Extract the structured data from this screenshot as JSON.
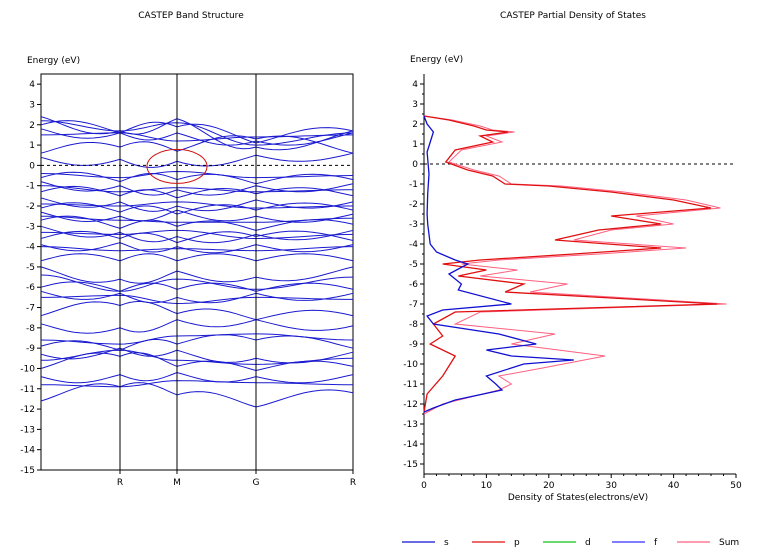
{
  "chart_data": [
    {
      "type": "line",
      "title": "CASTEP Band Structure",
      "ylabel": "Energy (eV)",
      "xlabel": "",
      "ylim": [
        -15,
        4.5
      ],
      "yticks": [
        4,
        3,
        2,
        1,
        0,
        -1,
        -2,
        -3,
        -4,
        -5,
        -6,
        -7,
        -8,
        -9,
        -10,
        -11,
        -12,
        -13,
        -14,
        -15
      ],
      "kpoint_labels": [
        "R",
        "M",
        "G",
        "R"
      ],
      "fermi_level": 0,
      "grid": false,
      "line_color": "#1a1ad0",
      "highlight_color": "#d01010",
      "bands": {
        "_note_": "approximate band energies at k-points: start, R, M, G, end(R)",
        "x": [
          "",
          "R",
          "M",
          "G",
          "R"
        ],
        "series": [
          {
            "values": [
              2.4,
              1.7,
              2.3,
              0.9,
              1.7
            ]
          },
          {
            "values": [
              2.2,
              1.7,
              2.1,
              1.0,
              1.6
            ]
          },
          {
            "values": [
              2.0,
              1.6,
              1.9,
              1.1,
              1.7
            ]
          },
          {
            "values": [
              1.8,
              1.6,
              1.6,
              1.2,
              1.6
            ]
          },
          {
            "values": [
              1.5,
              1.6,
              1.2,
              1.4,
              1.5
            ]
          },
          {
            "values": [
              0.6,
              0.9,
              0.7,
              1.3,
              0.6
            ]
          },
          {
            "values": [
              0.4,
              0.3,
              0.2,
              0.5,
              0.6
            ]
          },
          {
            "values": [
              -0.4,
              -0.6,
              -0.3,
              -0.6,
              -0.5
            ]
          },
          {
            "values": [
              -0.6,
              -0.8,
              -0.7,
              -0.9,
              -0.7
            ]
          },
          {
            "values": [
              -0.8,
              -1.0,
              -1.2,
              -1.0,
              -0.9
            ]
          },
          {
            "values": [
              -1.0,
              -1.3,
              -1.1,
              -1.3,
              -1.2
            ]
          },
          {
            "values": [
              -1.3,
              -1.5,
              -1.6,
              -1.4,
              -1.5
            ]
          },
          {
            "values": [
              -1.6,
              -1.8,
              -2.0,
              -1.7,
              -1.8
            ]
          },
          {
            "values": [
              -1.9,
              -2.0,
              -1.8,
              -2.1,
              -2.0
            ]
          },
          {
            "values": [
              -2.1,
              -2.3,
              -2.4,
              -2.2,
              -2.2
            ]
          },
          {
            "values": [
              -2.3,
              -2.5,
              -2.2,
              -2.5,
              -2.4
            ]
          },
          {
            "values": [
              -2.5,
              -2.7,
              -2.8,
              -2.8,
              -2.6
            ]
          },
          {
            "values": [
              -2.7,
              -3.1,
              -3.0,
              -3.2,
              -2.9
            ]
          },
          {
            "values": [
              -3.0,
              -3.3,
              -3.5,
              -3.4,
              -3.2
            ]
          },
          {
            "values": [
              -3.3,
              -3.4,
              -3.2,
              -3.6,
              -3.4
            ]
          },
          {
            "values": [
              -3.6,
              -3.6,
              -3.8,
              -3.5,
              -3.7
            ]
          },
          {
            "values": [
              -3.9,
              -3.8,
              -4.0,
              -3.9,
              -3.9
            ]
          },
          {
            "values": [
              -4.0,
              -4.2,
              -4.1,
              -4.2,
              -4.0
            ]
          },
          {
            "values": [
              -4.7,
              -4.7,
              -4.7,
              -4.7,
              -4.7
            ]
          },
          {
            "values": [
              -5.0,
              -5.6,
              -5.2,
              -5.5,
              -5.0
            ]
          },
          {
            "values": [
              -5.4,
              -6.2,
              -5.6,
              -6.1,
              -5.5
            ]
          },
          {
            "values": [
              -6.0,
              -6.2,
              -6.1,
              -6.2,
              -6.1
            ]
          },
          {
            "values": [
              -6.2,
              -6.3,
              -6.5,
              -6.3,
              -6.3
            ]
          },
          {
            "values": [
              -6.5,
              -6.4,
              -6.8,
              -6.5,
              -6.6
            ]
          },
          {
            "values": [
              -7.4,
              -6.9,
              -7.3,
              -7.6,
              -7.4
            ]
          },
          {
            "values": [
              -7.8,
              -8.0,
              -7.6,
              -7.6,
              -7.9
            ]
          },
          {
            "values": [
              -8.6,
              -8.8,
              -8.4,
              -8.3,
              -8.6
            ]
          },
          {
            "values": [
              -8.9,
              -9.1,
              -8.8,
              -8.6,
              -9.0
            ]
          },
          {
            "values": [
              -9.3,
              -9.0,
              -9.1,
              -9.5,
              -9.2
            ]
          },
          {
            "values": [
              -9.6,
              -9.1,
              -9.6,
              -9.8,
              -9.5
            ]
          },
          {
            "values": [
              -10.0,
              -9.4,
              -9.9,
              -10.1,
              -9.9
            ]
          },
          {
            "values": [
              -10.4,
              -10.3,
              -10.2,
              -10.4,
              -10.3
            ]
          },
          {
            "values": [
              -10.8,
              -10.9,
              -10.6,
              -10.7,
              -10.8
            ]
          },
          {
            "values": [
              -11.6,
              -10.9,
              -11.3,
              -11.9,
              -11.2
            ]
          }
        ]
      }
    },
    {
      "type": "line",
      "title": "CASTEP Partial  Density of States",
      "xlabel": "Density of States(electrons/eV)",
      "ylabel": "Energy (eV)",
      "xlim": [
        0,
        50
      ],
      "xticks": [
        0,
        10,
        20,
        30,
        40,
        50
      ],
      "ylim": [
        -15.5,
        4.5
      ],
      "yticks": [
        4,
        3,
        2,
        1,
        0,
        -1,
        -2,
        -3,
        -4,
        -5,
        -6,
        -7,
        -8,
        -9,
        -10,
        -11,
        -12,
        -13,
        -14,
        -15
      ],
      "fermi_level": 0,
      "legend_position": "bottom",
      "series": [
        {
          "name": "s",
          "color": "#1010d0",
          "x": [
            0,
            0.5,
            1.5,
            0.5,
            0.8,
            0.6,
            0.5,
            0.6,
            1.0,
            2.0,
            5.0,
            7.0,
            4.0,
            6.0,
            5.5,
            14.0,
            3.0,
            0.5,
            1.5,
            12.0,
            18.0,
            10.0,
            14.0,
            24.0,
            16.0,
            10.0,
            11.5,
            12.5,
            5.0,
            1.5,
            0
          ],
          "y": [
            2.4,
            2.0,
            1.6,
            0.6,
            -0.5,
            -1.5,
            -2.5,
            -3.0,
            -4.0,
            -4.4,
            -4.8,
            -5.0,
            -5.5,
            -6.0,
            -6.3,
            -7.0,
            -7.3,
            -7.6,
            -8.0,
            -8.5,
            -9.0,
            -9.3,
            -9.6,
            -9.8,
            -10.0,
            -10.6,
            -11.0,
            -11.3,
            -11.8,
            -12.2,
            -12.4
          ]
        },
        {
          "name": "p",
          "color": "#e01010",
          "x": [
            0,
            4.0,
            8.0,
            10.0,
            13.5,
            9.0,
            11.0,
            5.0,
            3.5,
            7.0,
            11.0,
            13.0,
            20.0,
            30.0,
            40.0,
            46.0,
            30.0,
            38.0,
            28.0,
            21.0,
            38.0,
            24.0,
            9.0,
            3.0,
            10.0,
            5.5,
            16.0,
            13.0,
            47.0,
            5.0,
            1.5,
            3.0,
            1.0,
            5.0,
            3.0,
            0.5,
            0
          ],
          "y": [
            2.4,
            2.2,
            1.9,
            1.7,
            1.6,
            1.4,
            1.1,
            0.7,
            0.1,
            -0.3,
            -0.6,
            -1.0,
            -1.1,
            -1.4,
            -1.8,
            -2.2,
            -2.6,
            -3.0,
            -3.3,
            -3.8,
            -4.2,
            -4.5,
            -4.8,
            -5.0,
            -5.3,
            -5.6,
            -6.0,
            -6.4,
            -7.0,
            -7.4,
            -8.0,
            -8.6,
            -9.0,
            -9.6,
            -10.6,
            -11.5,
            -12.4
          ]
        },
        {
          "name": "d",
          "color": "#10c010",
          "x": [
            0,
            0
          ],
          "y": [
            4.5,
            -15.5
          ]
        },
        {
          "name": "f",
          "color": "#3030ff",
          "x": [
            0,
            0
          ],
          "y": [
            4.5,
            -15.5
          ]
        },
        {
          "name": "Sum",
          "color": "#ff6080",
          "x": [
            0,
            4.5,
            9.0,
            11.0,
            14.5,
            10.0,
            12.5,
            6.0,
            4.0,
            8.0,
            12.0,
            14.0,
            22.0,
            32.0,
            42.0,
            47.5,
            34.0,
            40.0,
            30.0,
            24.0,
            42.0,
            28.0,
            12.0,
            6.0,
            15.0,
            9.0,
            23.0,
            17.0,
            48.5,
            9.0,
            5.0,
            21.0,
            14.0,
            29.0,
            24.0,
            19.0,
            12.0,
            14.0,
            12.0,
            3.0,
            0
          ],
          "y": [
            2.4,
            2.2,
            1.9,
            1.7,
            1.6,
            1.4,
            1.1,
            0.7,
            0.1,
            -0.3,
            -0.6,
            -1.0,
            -1.1,
            -1.4,
            -1.8,
            -2.2,
            -2.6,
            -3.0,
            -3.3,
            -3.8,
            -4.2,
            -4.5,
            -4.8,
            -5.0,
            -5.3,
            -5.6,
            -6.0,
            -6.4,
            -7.0,
            -7.4,
            -8.0,
            -8.5,
            -9.0,
            -9.6,
            -9.9,
            -10.2,
            -10.6,
            -11.0,
            -11.3,
            -12.0,
            -12.5
          ]
        }
      ]
    }
  ]
}
